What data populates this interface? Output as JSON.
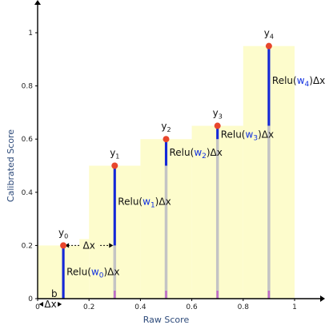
{
  "chart_data": {
    "type": "bar",
    "xlabel": "Raw Score",
    "ylabel": "Calibrated Score",
    "xlim": [
      0,
      1
    ],
    "ylim": [
      0,
      1
    ],
    "xticks": [
      0,
      0.2,
      0.4,
      0.6,
      0.8,
      1
    ],
    "xtick_labels": [
      "0",
      "0.2",
      "0.4",
      "0.6",
      "0.8",
      "1"
    ],
    "yticks": [
      0,
      0.2,
      0.4,
      0.6,
      0.8,
      1
    ],
    "ytick_labels": [
      "0",
      "0.2",
      "0.4",
      "0.6",
      "0.8",
      "1"
    ],
    "grid": false,
    "steps": [
      {
        "x0": 0.0,
        "x1": 0.2,
        "y": 0.2
      },
      {
        "x0": 0.2,
        "x1": 0.4,
        "y": 0.5
      },
      {
        "x0": 0.4,
        "x1": 0.6,
        "y": 0.6
      },
      {
        "x0": 0.6,
        "x1": 0.8,
        "y": 0.65
      },
      {
        "x0": 0.8,
        "x1": 1.0,
        "y": 0.95
      }
    ],
    "points": [
      {
        "x": 0.1,
        "y": 0.2,
        "sub": "0"
      },
      {
        "x": 0.3,
        "y": 0.5,
        "sub": "1"
      },
      {
        "x": 0.5,
        "y": 0.6,
        "sub": "2"
      },
      {
        "x": 0.7,
        "y": 0.65,
        "sub": "3"
      },
      {
        "x": 0.9,
        "y": 0.95,
        "sub": "4"
      }
    ],
    "increments": [
      {
        "x": 0.1,
        "y0": 0.0,
        "y1": 0.2
      },
      {
        "x": 0.3,
        "y0": 0.2,
        "y1": 0.5
      },
      {
        "x": 0.5,
        "y0": 0.5,
        "y1": 0.6
      },
      {
        "x": 0.7,
        "y0": 0.6,
        "y1": 0.65
      },
      {
        "x": 0.9,
        "y0": 0.65,
        "y1": 0.95
      }
    ],
    "point_label_prefix": "y",
    "relu_labels": [
      {
        "pre": "Relu(",
        "w": "w",
        "sub": "0",
        "post": ")Δx"
      },
      {
        "pre": "Relu(",
        "w": "w",
        "sub": "1",
        "post": ")Δx"
      },
      {
        "pre": "Relu(",
        "w": "w",
        "sub": "2",
        "post": ")Δx"
      },
      {
        "pre": "Relu(",
        "w": "w",
        "sub": "3",
        "post": ")Δx"
      },
      {
        "pre": "Relu(",
        "w": "w",
        "sub": "4",
        "post": ")Δx"
      }
    ],
    "dx_label": "Δx",
    "b_label": "b",
    "colors": {
      "step_fill": "#fdfccc",
      "guide": "#c4c4c4",
      "increment": "#1428d8",
      "point": "#e8462c",
      "tick_mark": "#c06bc4",
      "b_text": "#c06bc4",
      "weight": "#1030e0",
      "axis_label": "#2d4a7a"
    }
  }
}
